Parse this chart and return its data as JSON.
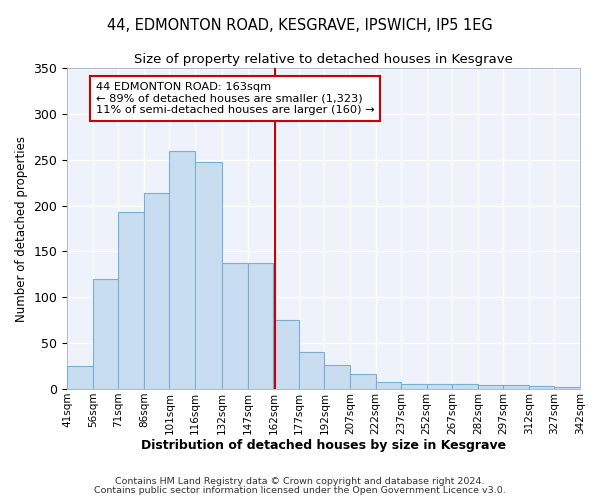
{
  "title": "44, EDMONTON ROAD, KESGRAVE, IPSWICH, IP5 1EG",
  "subtitle": "Size of property relative to detached houses in Kesgrave",
  "xlabel": "Distribution of detached houses by size in Kesgrave",
  "ylabel": "Number of detached properties",
  "bar_color": "#c9ddf0",
  "bar_edge_color": "#7aafd4",
  "fig_background_color": "#ffffff",
  "axes_background_color": "#edf2fb",
  "grid_color": "#ffffff",
  "vline_x": 163,
  "vline_color": "#cc0000",
  "bin_edges": [
    41,
    56,
    71,
    86,
    101,
    116,
    132,
    147,
    162,
    177,
    192,
    207,
    222,
    237,
    252,
    267,
    282,
    297,
    312,
    327,
    342
  ],
  "bar_heights": [
    25,
    120,
    193,
    214,
    260,
    248,
    137,
    137,
    75,
    40,
    26,
    16,
    8,
    6,
    6,
    5,
    4,
    4,
    3,
    2
  ],
  "ylim": [
    0,
    350
  ],
  "yticks": [
    0,
    50,
    100,
    150,
    200,
    250,
    300,
    350
  ],
  "annotation_title": "44 EDMONTON ROAD: 163sqm",
  "annotation_line1": "← 89% of detached houses are smaller (1,323)",
  "annotation_line2": "11% of semi-detached houses are larger (160) →",
  "annotation_box_color": "#ffffff",
  "annotation_border_color": "#cc0000",
  "footnote1": "Contains HM Land Registry data © Crown copyright and database right 2024.",
  "footnote2": "Contains public sector information licensed under the Open Government Licence v3.0."
}
